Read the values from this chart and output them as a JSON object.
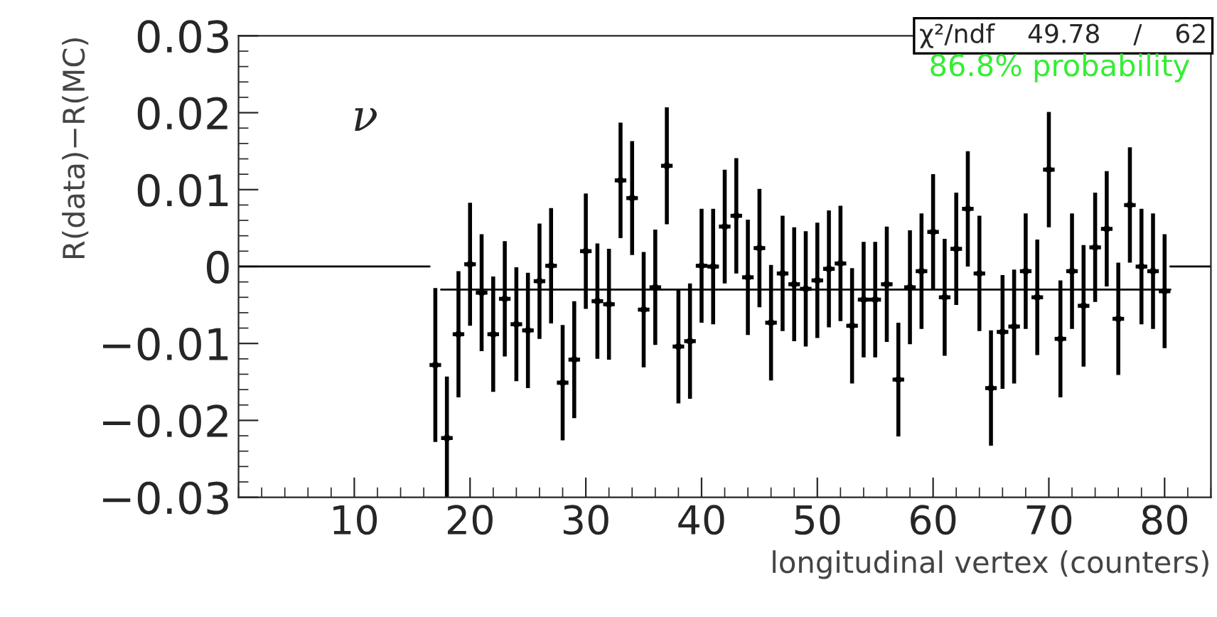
{
  "chart_data": {
    "type": "scatter",
    "xlabel": "longitudinal vertex (counters)",
    "ylabel": "R(data)−R(MC)",
    "xlim": [
      0,
      84
    ],
    "ylim": [
      -0.03,
      0.03
    ],
    "xticks": [
      10,
      20,
      30,
      40,
      50,
      60,
      70,
      80
    ],
    "yticks": [
      {
        "value": -0.03,
        "label": "−0.03"
      },
      {
        "value": -0.02,
        "label": "−0.02"
      },
      {
        "value": -0.01,
        "label": "−0.01"
      },
      0,
      0.01,
      0.02,
      0.03
    ],
    "grid": false,
    "legend": false,
    "annotations": [
      "ν",
      "χ²/ndf    49.78    /    62",
      "86.8% probability"
    ],
    "series": [
      {
        "type": "scatter",
        "marker": "circle",
        "color": "#000000",
        "x": [
          17,
          18,
          19,
          20,
          21,
          22,
          23,
          24,
          25,
          26,
          27,
          28,
          29,
          30,
          31,
          32,
          33,
          34,
          35,
          36,
          37,
          38,
          39,
          40,
          41,
          42,
          43,
          44,
          45,
          46,
          47,
          48,
          49,
          50,
          51,
          52,
          53,
          54,
          55,
          56,
          57,
          58,
          59,
          60,
          61,
          62,
          63,
          64,
          65,
          66,
          67,
          68,
          69,
          70,
          71,
          72,
          73,
          74,
          75,
          76,
          77,
          78,
          79,
          80
        ],
        "values": [
          -0.0128,
          -0.0223,
          -0.0088,
          0.0003,
          -0.0034,
          -0.0088,
          -0.0042,
          -0.0075,
          -0.0083,
          -0.0019,
          0.0001,
          -0.0151,
          -0.0121,
          0.002,
          -0.0045,
          -0.0049,
          0.0112,
          0.0089,
          -0.0056,
          -0.0027,
          0.0131,
          -0.0104,
          -0.0097,
          0.0001,
          0.0,
          0.0052,
          0.0066,
          -0.0014,
          0.0024,
          -0.0073,
          -0.0009,
          -0.0023,
          -0.0029,
          -0.0018,
          -0.0003,
          0.0004,
          -0.0077,
          -0.0043,
          -0.0043,
          -0.0023,
          -0.0147,
          -0.0027,
          -0.0006,
          0.0045,
          -0.004,
          0.0023,
          0.0075,
          -0.0009,
          -0.0158,
          -0.0085,
          -0.0078,
          -0.0006,
          -0.004,
          0.0126,
          -0.0094,
          -0.0006,
          -0.0051,
          0.0025,
          0.0049,
          -0.0068,
          0.008,
          0.0,
          -0.0006,
          -0.0032
        ],
        "errors": [
          0.01,
          0.008,
          0.0082,
          0.008,
          0.0076,
          0.0075,
          0.0075,
          0.0074,
          0.0075,
          0.0075,
          0.0075,
          0.0075,
          0.0076,
          0.0075,
          0.0075,
          0.0072,
          0.0075,
          0.0074,
          0.0075,
          0.0075,
          0.0076,
          0.0074,
          0.0075,
          0.0074,
          0.0075,
          0.0074,
          0.0075,
          0.0075,
          0.0077,
          0.0075,
          0.0075,
          0.0074,
          0.0075,
          0.0075,
          0.0076,
          0.0075,
          0.0075,
          0.0075,
          0.0075,
          0.0075,
          0.0074,
          0.0074,
          0.0075,
          0.0075,
          0.0076,
          0.0073,
          0.0075,
          0.0075,
          0.0075,
          0.0074,
          0.0074,
          0.0075,
          0.0075,
          0.0075,
          0.0076,
          0.0075,
          0.0079,
          0.0071,
          0.0075,
          0.0073,
          0.0075,
          0.0075,
          0.0075,
          0.0074
        ],
        "xerrors": [
          0.5,
          0.5,
          0.5,
          0.5,
          0.5,
          0.5,
          0.5,
          0.5,
          0.5,
          0.5,
          0.5,
          0.5,
          0.5,
          0.5,
          0.5,
          0.5,
          0.5,
          0.5,
          0.5,
          0.5,
          0.5,
          0.5,
          0.5,
          0.5,
          0.5,
          0.5,
          0.5,
          0.5,
          0.5,
          0.5,
          0.5,
          0.5,
          0.5,
          0.5,
          0.5,
          0.5,
          0.5,
          0.5,
          0.5,
          0.5,
          0.5,
          0.5,
          0.5,
          0.5,
          0.5,
          0.5,
          0.5,
          0.5,
          0.5,
          0.5,
          0.5,
          0.5,
          0.5,
          0.5,
          0.5,
          0.5,
          0.5,
          0.5,
          0.5,
          0.5,
          0.5,
          0.5,
          0.5,
          0.5
        ]
      },
      {
        "type": "line",
        "color": "#000000",
        "x": [
          0,
          16.5
        ],
        "values": [
          0,
          0
        ]
      },
      {
        "type": "line",
        "color": "#000000",
        "x": [
          80.5,
          84
        ],
        "values": [
          0,
          0
        ]
      },
      {
        "type": "line",
        "color": "#000000",
        "x": [
          17.5,
          80.5
        ],
        "values": [
          -0.003,
          -0.003
        ]
      }
    ]
  }
}
